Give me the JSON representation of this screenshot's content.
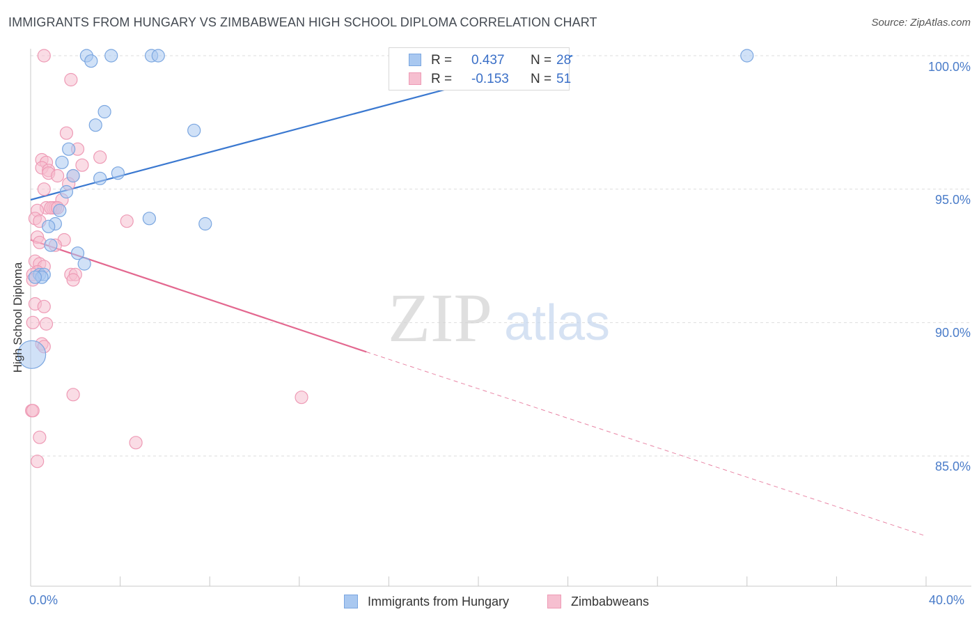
{
  "title": "IMMIGRANTS FROM HUNGARY VS ZIMBABWEAN HIGH SCHOOL DIPLOMA CORRELATION CHART",
  "source": "Source: ZipAtlas.com",
  "watermark": {
    "zip": "ZIP",
    "atlas": "atlas"
  },
  "legend": {
    "r_label": "R =",
    "n_label": "N =",
    "series1": {
      "r": "0.437",
      "n": "28"
    },
    "series2": {
      "r": "-0.153",
      "n": "51"
    }
  },
  "colors": {
    "blue_fill": "#a9c8f0",
    "blue_stroke": "#7aa6e0",
    "blue_line": "#3a78d0",
    "pink_fill": "#f6bfd0",
    "pink_stroke": "#ee9ab5",
    "pink_line": "#e3678f",
    "grid": "#dddddd",
    "tick_text": "#4a7cc9"
  },
  "chart_data": {
    "type": "scatter",
    "title": "IMMIGRANTS FROM HUNGARY VS ZIMBABWEAN HIGH SCHOOL DIPLOMA CORRELATION CHART",
    "xlabel": "",
    "ylabel": "High School Diploma",
    "xlim": [
      0,
      40
    ],
    "ylim": [
      80.8,
      101.0
    ],
    "x_tick_labels": [
      "0.0%",
      "40.0%"
    ],
    "y_ticks": [
      85,
      90,
      95,
      100
    ],
    "y_tick_labels": [
      "85.0%",
      "90.0%",
      "95.0%",
      "100.0%"
    ],
    "legend_placement": "top-center",
    "series": [
      {
        "name": "Immigrants from Hungary",
        "color": "blue",
        "r": 0.437,
        "n": 28,
        "trend": {
          "x0": 0.0,
          "y0": 94.6,
          "x1": 24.2,
          "y1": 100.0,
          "dashed_to": null
        },
        "points": [
          {
            "x": 2.5,
            "y": 100.0
          },
          {
            "x": 3.6,
            "y": 100.0
          },
          {
            "x": 5.4,
            "y": 100.0
          },
          {
            "x": 5.7,
            "y": 100.0
          },
          {
            "x": 32.0,
            "y": 100.0
          },
          {
            "x": 2.7,
            "y": 99.8
          },
          {
            "x": 3.3,
            "y": 97.9
          },
          {
            "x": 2.9,
            "y": 97.4
          },
          {
            "x": 7.3,
            "y": 97.2
          },
          {
            "x": 1.7,
            "y": 96.5
          },
          {
            "x": 1.4,
            "y": 96.0
          },
          {
            "x": 3.9,
            "y": 95.6
          },
          {
            "x": 1.9,
            "y": 95.5
          },
          {
            "x": 3.1,
            "y": 95.4
          },
          {
            "x": 1.6,
            "y": 94.9
          },
          {
            "x": 1.3,
            "y": 94.2
          },
          {
            "x": 5.3,
            "y": 93.9
          },
          {
            "x": 1.1,
            "y": 93.7
          },
          {
            "x": 0.8,
            "y": 93.6
          },
          {
            "x": 7.8,
            "y": 93.7
          },
          {
            "x": 0.9,
            "y": 92.9
          },
          {
            "x": 2.1,
            "y": 92.6
          },
          {
            "x": 2.4,
            "y": 92.2
          },
          {
            "x": 0.4,
            "y": 91.8
          },
          {
            "x": 0.6,
            "y": 91.8
          },
          {
            "x": 0.5,
            "y": 91.7
          },
          {
            "x": 0.2,
            "y": 91.7
          },
          {
            "x": 0.05,
            "y": 88.8,
            "big": true
          }
        ]
      },
      {
        "name": "Zimbabweans",
        "color": "pink",
        "r": -0.153,
        "n": 51,
        "trend": {
          "x0": 0.0,
          "y0": 93.1,
          "x1": 15.0,
          "y1": 88.9,
          "dashed_to": {
            "x": 40.0,
            "y": 82.0
          }
        },
        "points": [
          {
            "x": 0.6,
            "y": 100.0
          },
          {
            "x": 1.8,
            "y": 99.1
          },
          {
            "x": 1.6,
            "y": 97.1
          },
          {
            "x": 2.1,
            "y": 96.5
          },
          {
            "x": 3.1,
            "y": 96.2
          },
          {
            "x": 0.5,
            "y": 96.1
          },
          {
            "x": 0.7,
            "y": 96.0
          },
          {
            "x": 2.3,
            "y": 95.9
          },
          {
            "x": 0.5,
            "y": 95.8
          },
          {
            "x": 0.8,
            "y": 95.7
          },
          {
            "x": 0.8,
            "y": 95.6
          },
          {
            "x": 1.9,
            "y": 95.5
          },
          {
            "x": 1.2,
            "y": 95.5
          },
          {
            "x": 1.7,
            "y": 95.2
          },
          {
            "x": 0.6,
            "y": 95.0
          },
          {
            "x": 1.4,
            "y": 94.6
          },
          {
            "x": 0.7,
            "y": 94.3
          },
          {
            "x": 1.0,
            "y": 94.3
          },
          {
            "x": 1.1,
            "y": 94.3
          },
          {
            "x": 0.9,
            "y": 94.3
          },
          {
            "x": 0.3,
            "y": 94.2
          },
          {
            "x": 1.2,
            "y": 94.3
          },
          {
            "x": 0.2,
            "y": 93.9
          },
          {
            "x": 4.3,
            "y": 93.8
          },
          {
            "x": 0.4,
            "y": 93.8
          },
          {
            "x": 0.3,
            "y": 93.2
          },
          {
            "x": 1.5,
            "y": 93.1
          },
          {
            "x": 0.4,
            "y": 93.0
          },
          {
            "x": 1.1,
            "y": 92.9
          },
          {
            "x": 0.2,
            "y": 92.3
          },
          {
            "x": 0.4,
            "y": 92.2
          },
          {
            "x": 0.6,
            "y": 92.1
          },
          {
            "x": 0.3,
            "y": 91.9
          },
          {
            "x": 0.1,
            "y": 91.8
          },
          {
            "x": 1.8,
            "y": 91.8
          },
          {
            "x": 2.0,
            "y": 91.8
          },
          {
            "x": 1.9,
            "y": 91.6
          },
          {
            "x": 0.1,
            "y": 91.6
          },
          {
            "x": 0.2,
            "y": 90.7
          },
          {
            "x": 0.6,
            "y": 90.6
          },
          {
            "x": 0.1,
            "y": 90.0
          },
          {
            "x": 0.7,
            "y": 89.95
          },
          {
            "x": 0.5,
            "y": 89.2
          },
          {
            "x": 0.6,
            "y": 89.1
          },
          {
            "x": 1.9,
            "y": 87.3
          },
          {
            "x": 12.1,
            "y": 87.2
          },
          {
            "x": 0.05,
            "y": 86.7
          },
          {
            "x": 0.4,
            "y": 85.7
          },
          {
            "x": 4.7,
            "y": 85.5
          },
          {
            "x": 0.3,
            "y": 84.8
          },
          {
            "x": 0.1,
            "y": 86.7
          }
        ]
      }
    ]
  }
}
